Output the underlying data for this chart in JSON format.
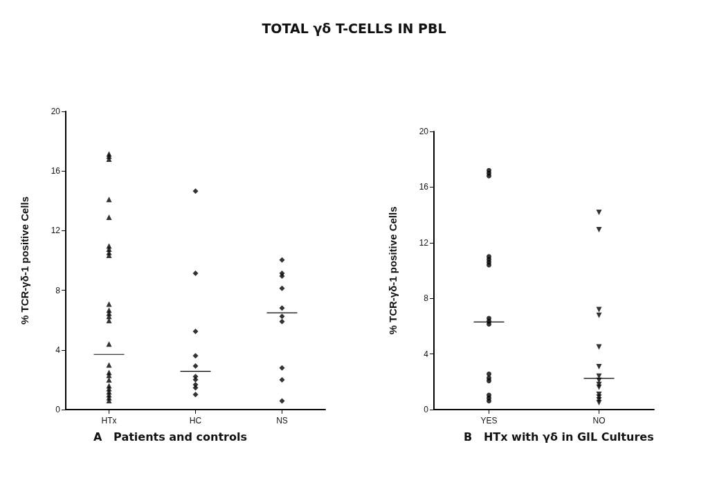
{
  "chart_data": [
    {
      "type": "scatter",
      "title": "TOTAL γδ T-CELLS IN PBL",
      "xlabel": "A   Patients and controls",
      "ylabel": "% TCR-γδ-1 positive Cells",
      "categories": [
        "HTx",
        "HC",
        "NS"
      ],
      "ylim": [
        0,
        20
      ],
      "yticks": [
        0,
        4,
        8,
        12,
        16,
        20
      ],
      "grid": false,
      "series": [
        {
          "color": "#000000",
          "marker": "triangle",
          "x": [
            "HTx",
            "HTx",
            "HTx",
            "HTx",
            "HTx",
            "HTx",
            "HTx",
            "HTx",
            "HTx",
            "HTx",
            "HTx",
            "HTx",
            "HTx",
            "HTx",
            "HTx",
            "HTx",
            "HTx",
            "HTx",
            "HTx",
            "HTx",
            "HTx",
            "HTx",
            "HTx",
            "HTx",
            "HTx"
          ],
          "values": [
            17.15,
            17.0,
            16.8,
            14.1,
            12.9,
            10.97,
            10.76,
            10.55,
            10.35,
            7.08,
            6.67,
            6.46,
            6.25,
            5.97,
            4.4,
            2.99,
            2.5,
            2.3,
            2.0,
            1.6,
            1.4,
            1.2,
            1.0,
            0.8,
            0.6
          ]
        },
        {
          "color": "#000000",
          "marker": "diamond",
          "x": [
            "HC",
            "HC",
            "HC",
            "HC",
            "HC",
            "HC",
            "HC",
            "HC",
            "HC",
            "HC"
          ],
          "values": [
            14.65,
            9.14,
            5.24,
            3.61,
            2.92,
            2.22,
            2.01,
            1.67,
            1.46,
            1.01
          ]
        },
        {
          "color": "#000000",
          "marker": "diamond",
          "x": [
            "NS",
            "NS",
            "NS",
            "NS",
            "NS",
            "NS",
            "NS",
            "NS",
            "NS",
            "NS"
          ],
          "values": [
            10.03,
            9.14,
            8.96,
            8.13,
            6.81,
            6.25,
            5.9,
            2.8,
            2.0,
            0.58
          ]
        },
        {
          "type": "box",
          "color": "#000000",
          "boxes": [
            {
              "low": 3.7,
              "q1": 3.7,
              "median": 3.7,
              "q3": 3.7,
              "high": 3.7
            },
            {
              "low": 2.57,
              "q1": 2.57,
              "median": 2.57,
              "q3": 2.57,
              "high": 2.57
            },
            {
              "low": 6.49,
              "q1": 6.49,
              "median": 6.49,
              "q3": 6.49,
              "high": 6.49
            }
          ]
        }
      ]
    },
    {
      "type": "scatter",
      "xlabel": "B   HTx with γδ in GIL Cultures",
      "ylabel": "% TCR-γδ-1 positive Cells",
      "categories": [
        "YES",
        "NO"
      ],
      "ylim": [
        0,
        20
      ],
      "yticks": [
        0,
        4,
        8,
        12,
        16,
        20
      ],
      "grid": false,
      "series": [
        {
          "color": "#000000",
          "marker": "circle",
          "x": [
            "YES",
            "YES",
            "YES",
            "YES",
            "YES",
            "YES",
            "YES",
            "YES",
            "YES",
            "YES",
            "YES",
            "YES",
            "YES",
            "YES",
            "YES",
            "YES"
          ],
          "values": [
            17.2,
            17.0,
            16.8,
            11.0,
            10.8,
            10.6,
            10.4,
            6.57,
            6.36,
            6.15,
            2.56,
            2.28,
            2.07,
            1.04,
            0.83,
            0.62
          ]
        },
        {
          "color": "#000000",
          "marker": "triangle_down",
          "x": [
            "NO",
            "NO",
            "NO",
            "NO",
            "NO",
            "NO",
            "NO",
            "NO",
            "NO",
            "NO",
            "NO",
            "NO",
            "NO",
            "NO"
          ],
          "values": [
            14.18,
            12.93,
            7.19,
            6.78,
            4.5,
            3.08,
            2.4,
            2.1,
            1.8,
            1.6,
            1.1,
            0.9,
            0.7,
            0.5
          ]
        },
        {
          "type": "box",
          "color": "#000000",
          "boxes": [
            {
              "low": 6.3,
              "q1": 6.3,
              "median": 6.3,
              "q3": 6.3,
              "high": 6.3
            },
            {
              "low": 2.25,
              "q1": 2.25,
              "median": 2.25,
              "q3": 2.25,
              "high": 2.25
            }
          ]
        }
      ]
    }
  ]
}
